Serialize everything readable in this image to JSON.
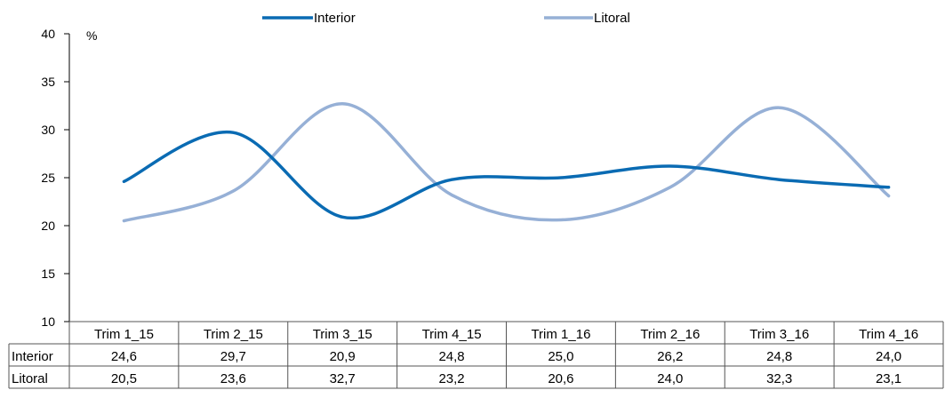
{
  "chart_data": {
    "type": "line",
    "categories": [
      "Trim 1_15",
      "Trim 2_15",
      "Trim 3_15",
      "Trim 4_15",
      "Trim 1_16",
      "Trim 2_16",
      "Trim 3_16",
      "Trim 4_16"
    ],
    "series": [
      {
        "name": "Interior",
        "values": [
          24.6,
          29.7,
          20.9,
          24.8,
          25.0,
          26.2,
          24.8,
          24.0
        ],
        "labels": [
          "24,6",
          "29,7",
          "20,9",
          "24,8",
          "25,0",
          "26,2",
          "24,8",
          "24,0"
        ],
        "color": "#0a6bb3"
      },
      {
        "name": "Litoral",
        "values": [
          20.5,
          23.6,
          32.7,
          23.2,
          20.6,
          24.0,
          32.3,
          23.1
        ],
        "labels": [
          "20,5",
          "23,6",
          "32,7",
          "23,2",
          "20,6",
          "24,0",
          "32,3",
          "23,1"
        ],
        "color": "#96b0d6"
      }
    ],
    "ylabel": "%",
    "ylim": [
      10,
      40
    ],
    "yticks": [
      10,
      15,
      20,
      25,
      30,
      35,
      40
    ],
    "legend_position": "top",
    "data_table": true,
    "smooth": true
  }
}
